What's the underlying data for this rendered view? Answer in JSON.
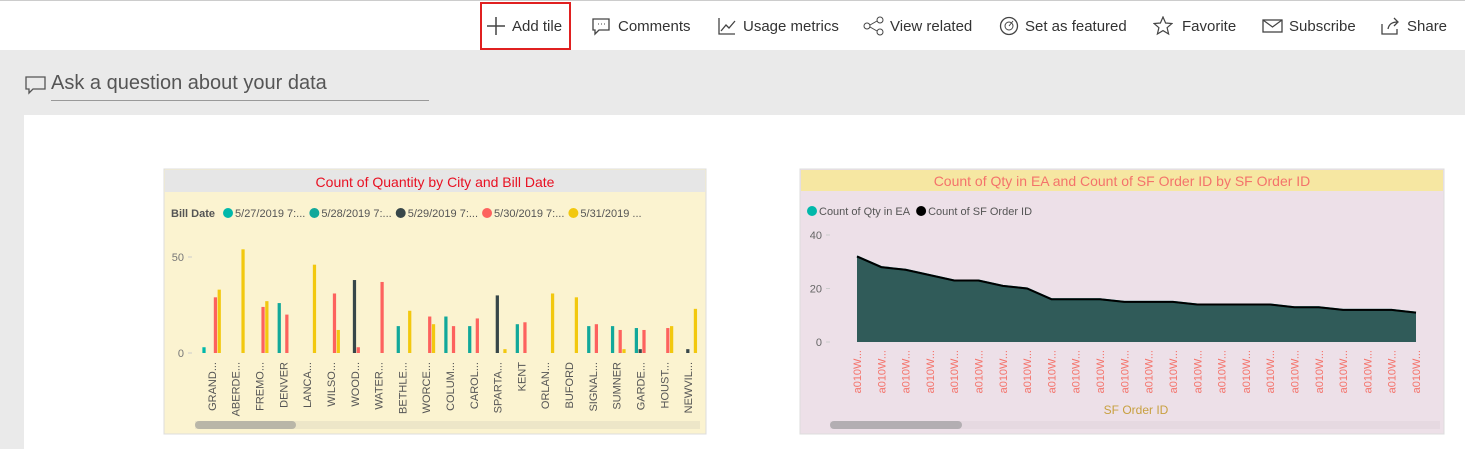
{
  "toolbar": [
    "Add tile",
    "Comments",
    "Usage metrics",
    "View related",
    "Set as featured",
    "Favorite",
    "Subscribe",
    "Share"
  ],
  "qa_placeholder": "Ask a question about your data",
  "chart_data": [
    {
      "type": "bar",
      "title": "Count of Quantity by City and Bill Date",
      "legend_title": "Bill Date",
      "categories": [
        "GRAND...",
        "ABERDE...",
        "FREMO...",
        "DENVER",
        "LANCA...",
        "WILSO...",
        "WOOD...",
        "WATER...",
        "BETHLE...",
        "WORCE...",
        "COLUM...",
        "CAROL...",
        "SPARTA...",
        "KENT",
        "ORLAN...",
        "BUFORD",
        "SIGNAL...",
        "SUMNER",
        "GARDE...",
        "HOUST...",
        "NEWVIL..."
      ],
      "series": [
        {
          "name": "5/27/2019 7:...",
          "color": "#01b8aa",
          "values": [
            3,
            null,
            null,
            null,
            null,
            null,
            null,
            null,
            null,
            null,
            null,
            null,
            null,
            null,
            null,
            null,
            null,
            null,
            null,
            null,
            null
          ]
        },
        {
          "name": "5/28/2019 7:...",
          "color": "#12a89a",
          "values": [
            null,
            null,
            null,
            26,
            null,
            null,
            null,
            null,
            14,
            null,
            19,
            14,
            null,
            15,
            null,
            null,
            14,
            14,
            13,
            null,
            null
          ]
        },
        {
          "name": "5/29/2019 7:...",
          "color": "#374649",
          "values": [
            null,
            null,
            null,
            null,
            null,
            null,
            38,
            null,
            null,
            null,
            null,
            null,
            30,
            null,
            null,
            null,
            null,
            null,
            2,
            null,
            2
          ]
        },
        {
          "name": "5/30/2019 7:...",
          "color": "#fd625e",
          "values": [
            29,
            null,
            24,
            20,
            null,
            31,
            3,
            37,
            null,
            19,
            14,
            18,
            null,
            16,
            null,
            null,
            15,
            12,
            12,
            13,
            null
          ]
        },
        {
          "name": "5/31/2019 ...",
          "color": "#f2c80f",
          "values": [
            33,
            54,
            27,
            null,
            46,
            12,
            null,
            null,
            22,
            15,
            null,
            null,
            2,
            null,
            31,
            29,
            null,
            2,
            null,
            14,
            23
          ]
        }
      ],
      "ylim": [
        0,
        55
      ],
      "yticks": [
        0,
        50
      ]
    },
    {
      "type": "area",
      "title": "Count of Qty in EA and Count of SF Order ID by SF Order ID",
      "x_label": "SF Order ID",
      "categories": [
        "a010W...",
        "a010W...",
        "a010W...",
        "a010W...",
        "a010W...",
        "a010W...",
        "a010W...",
        "a010W...",
        "a010W...",
        "a010W...",
        "a010W...",
        "a010W...",
        "a010W...",
        "a010W...",
        "a010W...",
        "a010W...",
        "a010W...",
        "a010W...",
        "a010W...",
        "a010W...",
        "a010W...",
        "a010W...",
        "a010W...",
        "a010W..."
      ],
      "series": [
        {
          "name": "Count of Qty in EA",
          "color": "#01b8aa",
          "values": [
            32,
            28,
            27,
            25,
            23,
            23,
            21,
            20,
            16,
            16,
            16,
            15,
            15,
            15,
            14,
            14,
            14,
            14,
            13,
            13,
            12,
            12,
            12,
            11
          ]
        },
        {
          "name": "Count of SF Order ID",
          "color": "#000000",
          "values": [
            32,
            28,
            27,
            25,
            23,
            23,
            21,
            20,
            16,
            16,
            16,
            15,
            15,
            15,
            14,
            14,
            14,
            14,
            13,
            13,
            12,
            12,
            12,
            11
          ]
        }
      ],
      "ylim": [
        0,
        40
      ],
      "yticks": [
        0,
        20,
        40
      ]
    }
  ]
}
